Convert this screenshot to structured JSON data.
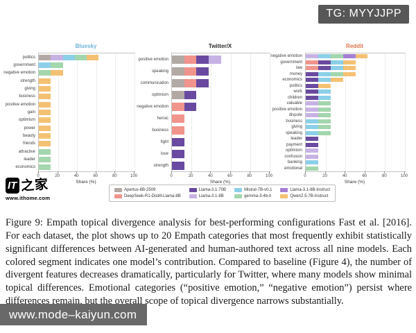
{
  "badge": {
    "text": "TG: MYYJJPP"
  },
  "bottom_bar": {
    "text": "www.mode–kaiyun.com"
  },
  "watermark": {
    "logo_main": "IT",
    "logo_cn": "之家",
    "url": "www.ithome.com"
  },
  "caption": {
    "text": "Figure 9: Empath topical divergence analysis for best-performing configurations Fast et al. [2016]. For each dataset, the plot shows up to 20 Empath categories that most frequently exhibit statistically significant differences between AI-generated and human-authored text across all nine models. Each colored segment indicates one model’s contribution. Compared to baseline (Figure 4), the number of divergent features decreases dramatically, particularly for Twitter, where many models show minimal topical differences. Emotional categories (“positive emotion,” “negative emotion”) persist where differences remain, but the overall scope of topical divergence narrows substantially."
  },
  "models": {
    "Apertus-8B-2509": "#b3a9a4",
    "DeepSeek-R1-Distill-Llama-8B": "#f0948c",
    "Llama-3.1-70B": "#6a4aa0",
    "Llama-3.1-8B": "#c7b2e4",
    "Mistral-7B-v0.1": "#8ccfe8",
    "gemma-3-4b-it": "#a3d6ad",
    "Llama-3.1-8B-Instruct": "#a57fd2",
    "Qwen2.5-7B-Instruct": "#f4c173"
  },
  "legend": {
    "items": [
      {
        "label": "Apertus-8B-2509",
        "color": "#b3a9a4"
      },
      {
        "label": "Llama-3.1-70B",
        "color": "#6a4aa0"
      },
      {
        "label": "Mistral-7B-v0.1",
        "color": "#8ccfe8"
      },
      {
        "label": "Llama-3.1-8B-Instruct",
        "color": "#a57fd2"
      },
      {
        "label": "DeepSeek-R1-Distill-Llama-8B",
        "color": "#f0948c"
      },
      {
        "label": "Llama-3.1-8B",
        "color": "#c7b2e4"
      },
      {
        "label": "gemma-3-4b-it",
        "color": "#a3d6ad"
      },
      {
        "label": "Qwen2.5-7B-Instruct",
        "color": "#f4c173"
      }
    ]
  },
  "chart_data": [
    {
      "type": "bar",
      "orientation": "horizontal",
      "stacked": true,
      "title": "Bluesky",
      "title_color": "#6db3d4",
      "xlabel": "Share (%)",
      "xlim": [
        0,
        100
      ],
      "xticks": [
        0,
        20,
        40,
        60,
        80,
        100
      ],
      "grid": true,
      "bars": [
        {
          "category": "politics",
          "segments": [
            {
              "model": "Apertus-8B-2509",
              "value": 12.5
            },
            {
              "model": "Llama-3.1-8B",
              "value": 12.5
            },
            {
              "model": "Mistral-7B-v0.1",
              "value": 12.5
            },
            {
              "model": "gemma-3-4b-it",
              "value": 12.5
            },
            {
              "model": "Qwen2.5-7B-Instruct",
              "value": 12.5
            }
          ]
        },
        {
          "category": "government",
          "segments": [
            {
              "model": "Mistral-7B-v0.1",
              "value": 12.5
            },
            {
              "model": "gemma-3-4b-it",
              "value": 12.5
            }
          ]
        },
        {
          "category": "negative emotion",
          "segments": [
            {
              "model": "gemma-3-4b-it",
              "value": 12.5
            },
            {
              "model": "Qwen2.5-7B-Instruct",
              "value": 12.5
            }
          ]
        },
        {
          "category": "strength",
          "segments": [
            {
              "model": "Qwen2.5-7B-Instruct",
              "value": 12.5
            }
          ]
        },
        {
          "category": "giving",
          "segments": [
            {
              "model": "Qwen2.5-7B-Instruct",
              "value": 12.5
            }
          ]
        },
        {
          "category": "business",
          "segments": [
            {
              "model": "Qwen2.5-7B-Instruct",
              "value": 12.5
            }
          ]
        },
        {
          "category": "positive emotion",
          "segments": [
            {
              "model": "Qwen2.5-7B-Instruct",
              "value": 12.5
            }
          ]
        },
        {
          "category": "gain",
          "segments": [
            {
              "model": "Qwen2.5-7B-Instruct",
              "value": 12.5
            }
          ]
        },
        {
          "category": "optimism",
          "segments": [
            {
              "model": "Qwen2.5-7B-Instruct",
              "value": 12.5
            }
          ]
        },
        {
          "category": "power",
          "segments": [
            {
              "model": "Qwen2.5-7B-Instruct",
              "value": 12.5
            }
          ]
        },
        {
          "category": "beauty",
          "segments": [
            {
              "model": "Qwen2.5-7B-Instruct",
              "value": 12.5
            }
          ]
        },
        {
          "category": "friends",
          "segments": [
            {
              "model": "Qwen2.5-7B-Instruct",
              "value": 12.5
            }
          ]
        },
        {
          "category": "attractive",
          "segments": [
            {
              "model": "gemma-3-4b-it",
              "value": 12.5
            }
          ]
        },
        {
          "category": "leader",
          "segments": [
            {
              "model": "gemma-3-4b-it",
              "value": 12.5
            }
          ]
        },
        {
          "category": "economics",
          "segments": [
            {
              "model": "gemma-3-4b-it",
              "value": 12.5
            }
          ]
        }
      ]
    },
    {
      "type": "bar",
      "orientation": "horizontal",
      "stacked": true,
      "title": "Twitter/X",
      "title_color": "#2b2b2b",
      "xlabel": "Share (%)",
      "xlim": [
        0,
        100
      ],
      "xticks": [
        0,
        20,
        40,
        60,
        80,
        100
      ],
      "grid": true,
      "bars": [
        {
          "category": "positive emotion",
          "segments": [
            {
              "model": "Apertus-8B-2509",
              "value": 12.5
            },
            {
              "model": "DeepSeek-R1-Distill-Llama-8B",
              "value": 12.5
            },
            {
              "model": "Llama-3.1-70B",
              "value": 12.5
            },
            {
              "model": "Llama-3.1-8B",
              "value": 12.5
            }
          ]
        },
        {
          "category": "speaking",
          "segments": [
            {
              "model": "Apertus-8B-2509",
              "value": 12.5
            },
            {
              "model": "DeepSeek-R1-Distill-Llama-8B",
              "value": 12.5
            },
            {
              "model": "Llama-3.1-70B",
              "value": 12.5
            }
          ]
        },
        {
          "category": "communication",
          "segments": [
            {
              "model": "Apertus-8B-2509",
              "value": 12.5
            },
            {
              "model": "DeepSeek-R1-Distill-Llama-8B",
              "value": 12.5
            },
            {
              "model": "Llama-3.1-70B",
              "value": 12.5
            }
          ]
        },
        {
          "category": "optimism",
          "segments": [
            {
              "model": "Apertus-8B-2509",
              "value": 12.5
            },
            {
              "model": "Llama-3.1-70B",
              "value": 12.5
            }
          ]
        },
        {
          "category": "negative emotion",
          "segments": [
            {
              "model": "DeepSeek-R1-Distill-Llama-8B",
              "value": 12.5
            },
            {
              "model": "Llama-3.1-70B",
              "value": 12.5
            }
          ]
        },
        {
          "category": "heroic",
          "segments": [
            {
              "model": "DeepSeek-R1-Distill-Llama-8B",
              "value": 12.5
            }
          ]
        },
        {
          "category": "business",
          "segments": [
            {
              "model": "DeepSeek-R1-Distill-Llama-8B",
              "value": 12.5
            }
          ]
        },
        {
          "category": "fight",
          "segments": [
            {
              "model": "Llama-3.1-70B",
              "value": 12.5
            }
          ]
        },
        {
          "category": "love",
          "segments": [
            {
              "model": "Llama-3.1-70B",
              "value": 12.5
            }
          ]
        },
        {
          "category": "strength",
          "segments": [
            {
              "model": "Llama-3.1-70B",
              "value": 12.5
            }
          ]
        }
      ]
    },
    {
      "type": "bar",
      "orientation": "horizontal",
      "stacked": true,
      "title": "Reddit",
      "title_color": "#e0744c",
      "xlabel": "Share (%)",
      "xlim": [
        0,
        100
      ],
      "xticks": [
        0,
        20,
        40,
        60,
        80,
        100
      ],
      "grid": true,
      "bars": [
        {
          "category": "negative emotion",
          "segments": [
            {
              "model": "Llama-3.1-8B",
              "value": 12.5
            },
            {
              "model": "Mistral-7B-v0.1",
              "value": 12.5
            },
            {
              "model": "gemma-3-4b-it",
              "value": 12.5
            },
            {
              "model": "Llama-3.1-8B-Instruct",
              "value": 12.5
            },
            {
              "model": "Qwen2.5-7B-Instruct",
              "value": 12.5
            }
          ]
        },
        {
          "category": "government",
          "segments": [
            {
              "model": "DeepSeek-R1-Distill-Llama-8B",
              "value": 12.5
            },
            {
              "model": "Llama-3.1-70B",
              "value": 12.5
            },
            {
              "model": "Mistral-7B-v0.1",
              "value": 12.5
            },
            {
              "model": "Qwen2.5-7B-Instruct",
              "value": 12.5
            }
          ]
        },
        {
          "category": "law",
          "segments": [
            {
              "model": "DeepSeek-R1-Distill-Llama-8B",
              "value": 12.5
            },
            {
              "model": "Llama-3.1-70B",
              "value": 12.5
            },
            {
              "model": "Mistral-7B-v0.1",
              "value": 12.5
            },
            {
              "model": "Qwen2.5-7B-Instruct",
              "value": 12.5
            }
          ]
        },
        {
          "category": "money",
          "segments": [
            {
              "model": "Llama-3.1-70B",
              "value": 12.5
            },
            {
              "model": "Mistral-7B-v0.1",
              "value": 12.5
            },
            {
              "model": "gemma-3-4b-it",
              "value": 12.5
            },
            {
              "model": "Qwen2.5-7B-Instruct",
              "value": 12.5
            }
          ]
        },
        {
          "category": "economics",
          "segments": [
            {
              "model": "Llama-3.1-70B",
              "value": 12.5
            },
            {
              "model": "Mistral-7B-v0.1",
              "value": 12.5
            },
            {
              "model": "Qwen2.5-7B-Instruct",
              "value": 12.5
            }
          ]
        },
        {
          "category": "politics",
          "segments": [
            {
              "model": "Llama-3.1-70B",
              "value": 12.5
            },
            {
              "model": "Qwen2.5-7B-Instruct",
              "value": 12.5
            }
          ]
        },
        {
          "category": "work",
          "segments": [
            {
              "model": "Llama-3.1-70B",
              "value": 12.5
            },
            {
              "model": "Mistral-7B-v0.1",
              "value": 12.5
            }
          ]
        },
        {
          "category": "children",
          "segments": [
            {
              "model": "Llama-3.1-70B",
              "value": 12.5
            },
            {
              "model": "Mistral-7B-v0.1",
              "value": 12.5
            }
          ]
        },
        {
          "category": "valuable",
          "segments": [
            {
              "model": "Llama-3.1-8B",
              "value": 12.5
            },
            {
              "model": "gemma-3-4b-it",
              "value": 12.5
            }
          ]
        },
        {
          "category": "positive emotion",
          "segments": [
            {
              "model": "Llama-3.1-8B",
              "value": 12.5
            },
            {
              "model": "gemma-3-4b-it",
              "value": 12.5
            }
          ]
        },
        {
          "category": "dispute",
          "segments": [
            {
              "model": "Llama-3.1-8B",
              "value": 12.5
            },
            {
              "model": "gemma-3-4b-it",
              "value": 12.5
            }
          ]
        },
        {
          "category": "business",
          "segments": [
            {
              "model": "Mistral-7B-v0.1",
              "value": 12.5
            },
            {
              "model": "gemma-3-4b-it",
              "value": 12.5
            }
          ]
        },
        {
          "category": "giving",
          "segments": [
            {
              "model": "Mistral-7B-v0.1",
              "value": 12.5
            },
            {
              "model": "gemma-3-4b-it",
              "value": 12.5
            }
          ]
        },
        {
          "category": "speaking",
          "segments": [
            {
              "model": "Mistral-7B-v0.1",
              "value": 12.5
            },
            {
              "model": "gemma-3-4b-it",
              "value": 12.5
            }
          ]
        },
        {
          "category": "leader",
          "segments": [
            {
              "model": "Llama-3.1-70B",
              "value": 12.5
            }
          ]
        },
        {
          "category": "payment",
          "segments": [
            {
              "model": "Llama-3.1-70B",
              "value": 12.5
            }
          ]
        },
        {
          "category": "optimism",
          "segments": [
            {
              "model": "Llama-3.1-8B",
              "value": 12.5
            }
          ]
        },
        {
          "category": "confusion",
          "segments": [
            {
              "model": "Llama-3.1-8B",
              "value": 12.5
            }
          ]
        },
        {
          "category": "banking",
          "segments": [
            {
              "model": "Mistral-7B-v0.1",
              "value": 12.5
            }
          ]
        },
        {
          "category": "emotional",
          "segments": [
            {
              "model": "gemma-3-4b-it",
              "value": 12.5
            }
          ]
        }
      ]
    }
  ]
}
